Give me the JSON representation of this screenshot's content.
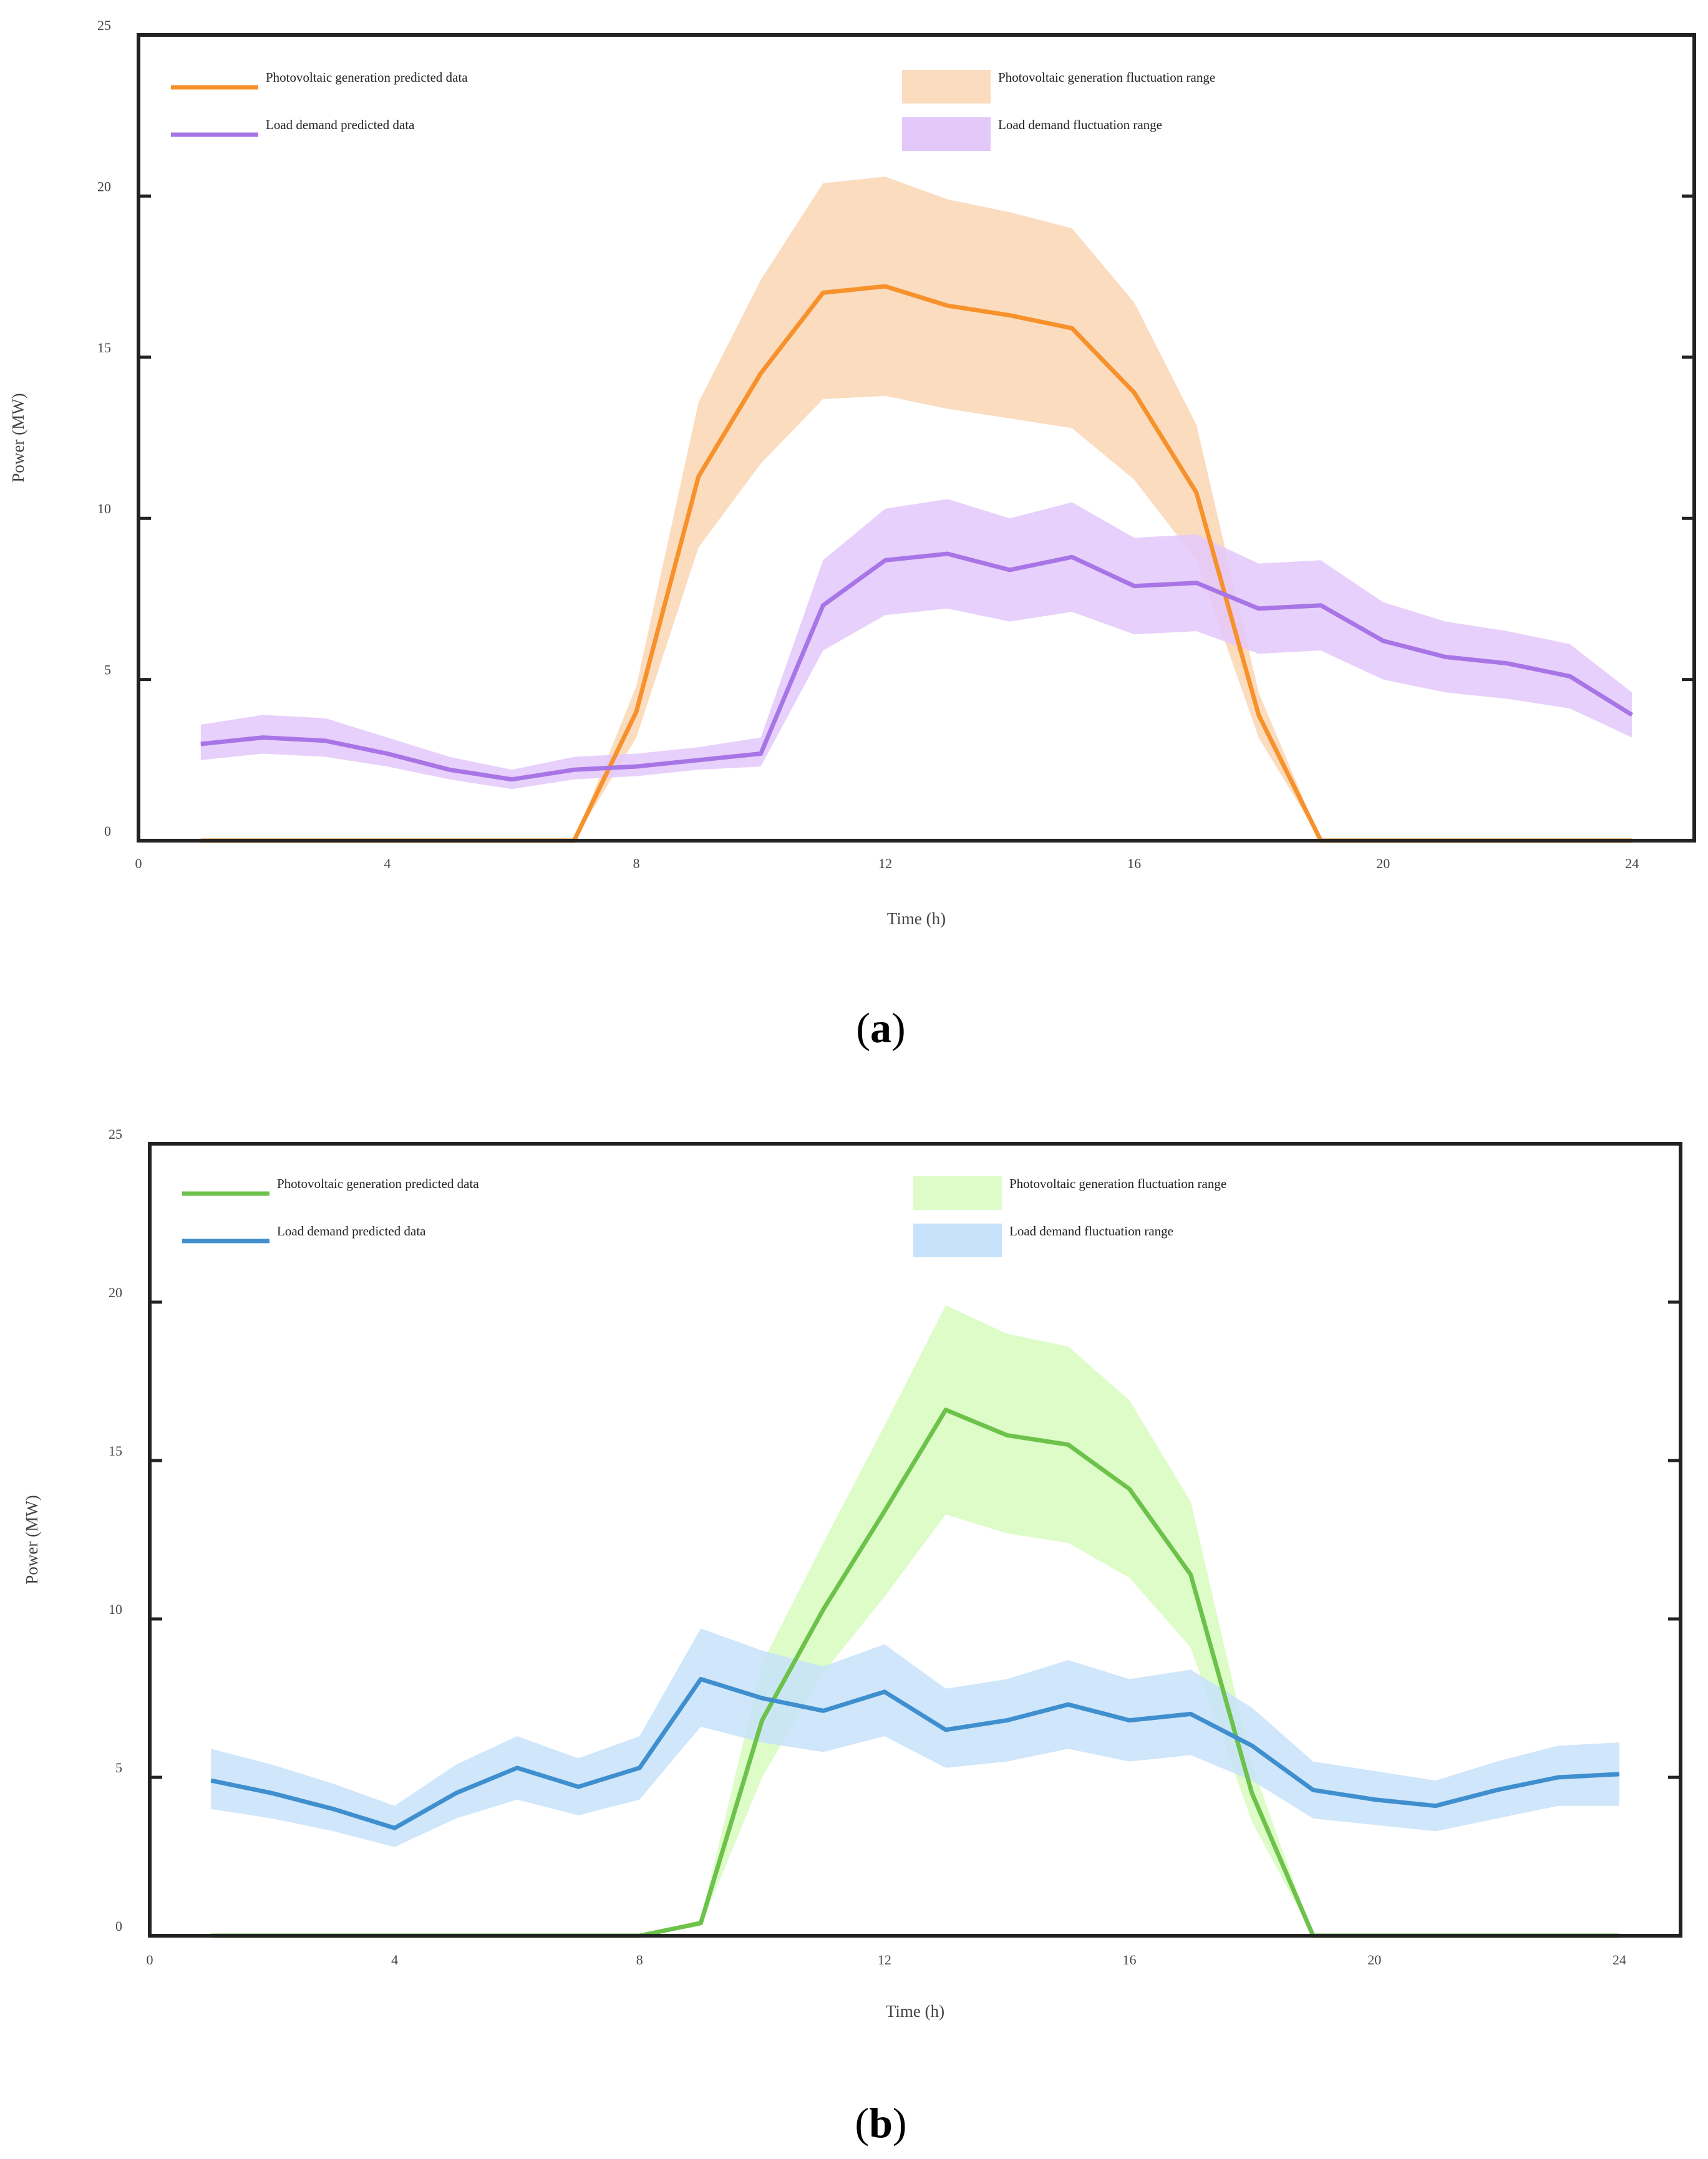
{
  "chart_data": [
    {
      "type": "line",
      "panel_label": "a",
      "xlabel": "Time (h)",
      "ylabel": "Power (MW)",
      "xlim": [
        0,
        25
      ],
      "ylim": [
        0,
        25
      ],
      "xticks": [
        0,
        4,
        8,
        12,
        16,
        20,
        24
      ],
      "yticks": [
        0,
        5,
        10,
        15,
        20,
        25
      ],
      "grid": false,
      "legend_position": "top",
      "colors": {
        "pv_line": "#f7912b",
        "pv_band": "#fbdcbf",
        "load_line": "#a875e6",
        "load_band": "#e3c8fa"
      },
      "legend": {
        "pv_predicted": "Photovoltaic generation predicted data",
        "load_predicted": "Load demand predicted data",
        "pv_range": "Photovoltaic generation fluctuation range",
        "load_range": "Load demand fluctuation range"
      },
      "x": [
        1,
        2,
        3,
        4,
        5,
        6,
        7,
        8,
        9,
        10,
        11,
        12,
        13,
        14,
        15,
        16,
        17,
        18,
        19,
        20,
        21,
        22,
        23,
        24
      ],
      "series": [
        {
          "name": "Photovoltaic generation predicted data",
          "kind": "line",
          "values": [
            0,
            0,
            0,
            0,
            0,
            0,
            0,
            4,
            11.3,
            14.5,
            17,
            17.2,
            16.6,
            16.3,
            15.9,
            13.9,
            10.8,
            3.9,
            0,
            0,
            0,
            0,
            0,
            0
          ]
        },
        {
          "name": "Photovoltaic generation fluctuation range",
          "kind": "band",
          "lower": [
            0,
            0,
            0,
            0,
            0,
            0,
            0,
            3.2,
            9.1,
            11.7,
            13.7,
            13.8,
            13.4,
            13.1,
            12.8,
            11.2,
            8.7,
            3.2,
            0,
            0,
            0,
            0,
            0,
            0
          ],
          "upper": [
            0,
            0,
            0,
            0,
            0,
            0,
            0,
            4.8,
            13.6,
            17.4,
            20.4,
            20.6,
            19.9,
            19.5,
            19,
            16.7,
            12.9,
            4.6,
            0,
            0,
            0,
            0,
            0,
            0
          ]
        },
        {
          "name": "Load demand predicted data",
          "kind": "line",
          "values": [
            3,
            3.2,
            3.1,
            2.7,
            2.2,
            1.9,
            2.2,
            2.3,
            2.5,
            2.7,
            7.3,
            8.7,
            8.9,
            8.4,
            8.8,
            7.9,
            8,
            7.2,
            7.3,
            6.2,
            5.7,
            5.5,
            5.1,
            3.9
          ]
        },
        {
          "name": "Load demand fluctuation range",
          "kind": "band",
          "lower": [
            2.5,
            2.7,
            2.6,
            2.3,
            1.9,
            1.6,
            1.9,
            2.0,
            2.2,
            2.3,
            5.9,
            7.0,
            7.2,
            6.8,
            7.1,
            6.4,
            6.5,
            5.8,
            5.9,
            5.0,
            4.6,
            4.4,
            4.1,
            3.2
          ],
          "upper": [
            3.6,
            3.9,
            3.8,
            3.2,
            2.6,
            2.2,
            2.6,
            2.7,
            2.9,
            3.2,
            8.7,
            10.3,
            10.6,
            10.0,
            10.5,
            9.4,
            9.5,
            8.6,
            8.7,
            7.4,
            6.8,
            6.5,
            6.1,
            4.6
          ]
        }
      ]
    },
    {
      "type": "line",
      "panel_label": "b",
      "xlabel": "Time (h)",
      "ylabel": "Power (MW)",
      "xlim": [
        0,
        25
      ],
      "ylim": [
        0,
        25
      ],
      "xticks": [
        0,
        4,
        8,
        12,
        16,
        20,
        24
      ],
      "yticks": [
        0,
        5,
        10,
        15,
        20,
        25
      ],
      "grid": false,
      "legend_position": "top",
      "colors": {
        "pv_line": "#6cc24a",
        "pv_band": "#ddfcc8",
        "load_line": "#3f8fcf",
        "load_band": "#c7e2fa"
      },
      "legend": {
        "pv_predicted": "Photovoltaic generation predicted data",
        "load_predicted": "Load demand predicted data",
        "pv_range": "Photovoltaic generation fluctuation range",
        "load_range": "Load demand fluctuation range"
      },
      "x": [
        1,
        2,
        3,
        4,
        5,
        6,
        7,
        8,
        9,
        10,
        11,
        12,
        13,
        14,
        15,
        16,
        17,
        18,
        19,
        20,
        21,
        22,
        23,
        24
      ],
      "series": [
        {
          "name": "Photovoltaic generation predicted data",
          "kind": "line",
          "values": [
            0,
            0,
            0,
            0,
            0,
            0,
            0,
            0,
            0.4,
            6.8,
            10.3,
            13.4,
            16.6,
            15.8,
            15.5,
            14.1,
            11.4,
            4.5,
            0,
            0,
            0,
            0,
            0,
            0
          ]
        },
        {
          "name": "Photovoltaic generation fluctuation range",
          "kind": "band",
          "lower": [
            0,
            0,
            0,
            0,
            0,
            0,
            0,
            0,
            0.3,
            5.0,
            8.3,
            10.7,
            13.3,
            12.7,
            12.4,
            11.3,
            9.1,
            3.6,
            0,
            0,
            0,
            0,
            0,
            0
          ],
          "upper": [
            0,
            0,
            0,
            0,
            0,
            0,
            0,
            0,
            0.5,
            8.6,
            12.4,
            16.1,
            19.9,
            19.0,
            18.6,
            16.9,
            13.7,
            5.4,
            0,
            0,
            0,
            0,
            0,
            0
          ]
        },
        {
          "name": "Load demand predicted data",
          "kind": "line",
          "values": [
            4.9,
            4.5,
            4.0,
            3.4,
            4.5,
            5.3,
            4.7,
            5.3,
            8.1,
            7.5,
            7.1,
            7.7,
            6.5,
            6.8,
            7.3,
            6.8,
            7.0,
            6.0,
            4.6,
            4.3,
            4.1,
            4.6,
            5.0,
            5.1
          ]
        },
        {
          "name": "Load demand fluctuation range",
          "kind": "band",
          "lower": [
            4.0,
            3.7,
            3.3,
            2.8,
            3.7,
            4.3,
            3.8,
            4.3,
            6.6,
            6.1,
            5.8,
            6.3,
            5.3,
            5.5,
            5.9,
            5.5,
            5.7,
            4.9,
            3.7,
            3.5,
            3.3,
            3.7,
            4.1,
            4.1
          ],
          "upper": [
            5.9,
            5.4,
            4.8,
            4.1,
            5.4,
            6.3,
            5.6,
            6.3,
            9.7,
            9.0,
            8.5,
            9.2,
            7.8,
            8.1,
            8.7,
            8.1,
            8.4,
            7.2,
            5.5,
            5.2,
            4.9,
            5.5,
            6.0,
            6.1
          ]
        }
      ]
    }
  ]
}
